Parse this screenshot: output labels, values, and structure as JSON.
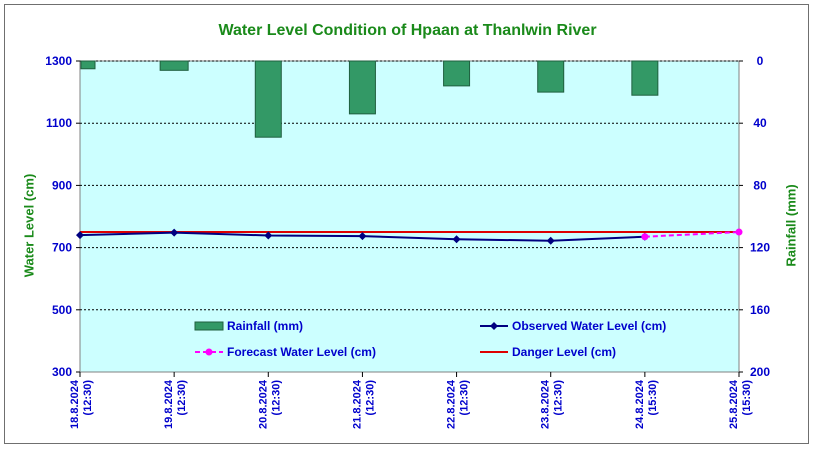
{
  "chart_data": {
    "type": "bar+line",
    "title": "Water Level Condition of Hpaan at Thanlwin River",
    "y_left_label": "Water Level (cm)",
    "y_right_label": "Rainfall (mm)",
    "y_left_range": [
      300,
      1300
    ],
    "y_left_ticks": [
      "300",
      "500",
      "700",
      "900",
      "1100",
      "1300"
    ],
    "y_right_range": [
      0,
      200
    ],
    "y_right_reversed": true,
    "y_right_ticks": [
      "0",
      "40",
      "80",
      "120",
      "160",
      "200"
    ],
    "categories": [
      [
        "18.8.2024",
        "(12:30)"
      ],
      [
        "19.8.2024",
        "(12:30)"
      ],
      [
        "20.8.2024",
        "(12:30)"
      ],
      [
        "21.8.2024",
        "(12:30)"
      ],
      [
        "22.8.2024",
        "(12:30)"
      ],
      [
        "23.8.2024",
        "(12:30)"
      ],
      [
        "24.8.2024",
        "(15:30)"
      ],
      [
        "25.8.2024",
        "(15:30)"
      ]
    ],
    "rainfall_mm": [
      5,
      6,
      49,
      34,
      16,
      20,
      22,
      null
    ],
    "observed_water_level_cm": [
      740,
      748,
      739,
      737,
      727,
      722,
      735,
      null
    ],
    "forecast_water_level_cm": [
      null,
      null,
      null,
      null,
      null,
      null,
      735,
      750
    ],
    "danger_level_cm": [
      750,
      750,
      750,
      750,
      750,
      750,
      750,
      750
    ],
    "legend": [
      {
        "label": "Rainfall (mm)",
        "kind": "bar"
      },
      {
        "label": "Observed Water Level (cm)",
        "kind": "line-diamond"
      },
      {
        "label": "Forecast Water Level (cm)",
        "kind": "dash-circle"
      },
      {
        "label": "Danger Level (cm)",
        "kind": "line"
      }
    ],
    "grid": "horizontal dashed",
    "colors": {
      "plot_bg": "#ccffff",
      "rain": "#339966",
      "observed": "#000080",
      "forecast": "#ff00ff",
      "danger": "#dd0000",
      "axis_text": "#0000cc",
      "title": "#1a8a1a"
    }
  }
}
